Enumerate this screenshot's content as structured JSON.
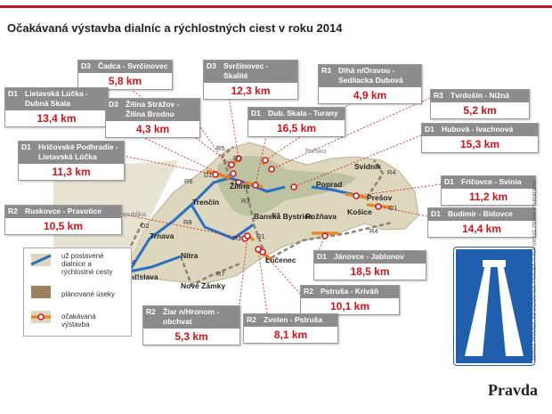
{
  "header": {
    "title": "Očakávaná výstavba dialníc a rýchlostných ciest v roku 2014"
  },
  "callouts": [
    {
      "road": "D3",
      "section": "Čadca - Svrčinovec",
      "length": "5,8 km"
    },
    {
      "road": "D3",
      "section": "Svrčinovec - Skalité",
      "length": "12,3 km"
    },
    {
      "road": "R3",
      "section": "Dlhá n/Oravou - Sedliacka Dubová",
      "length": "4,9 km"
    },
    {
      "road": "R3",
      "section": "Tvrdošín - Nižná",
      "length": "5,2 km"
    },
    {
      "road": "D1",
      "section": "Lietavská Lúčka - Dubná Skala",
      "length": "13,4 km"
    },
    {
      "road": "D3",
      "section": "Žilina Strážov - Žilina Brodno",
      "length": "4,3 km"
    },
    {
      "road": "D1",
      "section": "Dub. Skala - Turany",
      "length": "16,5 km"
    },
    {
      "road": "D1",
      "section": "Hubová - Ivachnová",
      "length": "15,3 km"
    },
    {
      "road": "D1",
      "section": "Hričovské Podhradie - Lietavská Lúčka",
      "length": "11,3 km"
    },
    {
      "road": "D1",
      "section": "Fričovce - Svinia",
      "length": "11,2 km"
    },
    {
      "road": "R2",
      "section": "Ruskovce - Pravotice",
      "length": "10,5 km"
    },
    {
      "road": "D1",
      "section": "Budimír - Bidovce",
      "length": "14,4 km"
    },
    {
      "road": "D1",
      "section": "Jánovce - Jablonov",
      "length": "18,5 km"
    },
    {
      "road": "R2",
      "section": "Pstruša - Kriváň",
      "length": "10,1 km"
    },
    {
      "road": "R2",
      "section": "Žiar n/Hronom - obchvat",
      "length": "5,3 km"
    },
    {
      "road": "R2",
      "section": "Zvolen - Pstruša",
      "length": "8,1 km"
    }
  ],
  "places": [
    "Žilina",
    "Trenčín",
    "Trnava",
    "Nitra",
    "Bratislava",
    "Nové Zámky",
    "Banská Bystrica",
    "Lučenec",
    "Poprad",
    "Prešov",
    "Košice",
    "Rožňava",
    "Svidník",
    "Česká republika",
    "Poľsko"
  ],
  "road_labels": [
    "R5",
    "D3",
    "D1",
    "R6",
    "R3",
    "R1",
    "R8",
    "D2",
    "D4",
    "R7",
    "R2",
    "R4",
    "D1",
    "R2",
    "R4"
  ],
  "legend": [
    "už postavené dialnice a rýchlostné cesty",
    "plánované úseky",
    "očakávaná výstavba"
  ],
  "footer": {
    "source": "ZDROJ: PRAVDA, INFOGRAFIKA: PRAVDA, © AUTORSKÉ PRÁVA VYHRADENÉ",
    "logo": "Pravda"
  }
}
